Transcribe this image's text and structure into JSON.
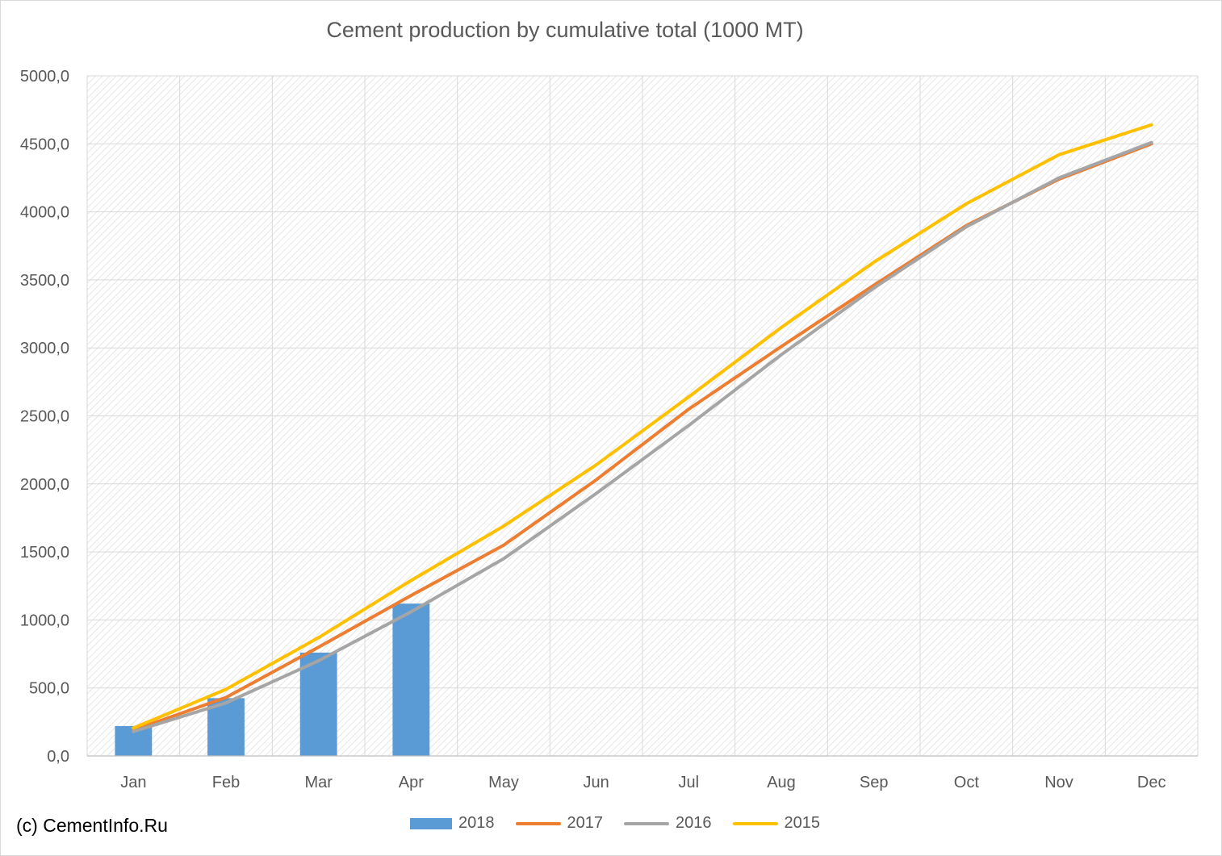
{
  "chart_data": {
    "type": "bar+line",
    "title": "Cement production by cumulative total (1000 MT)",
    "xlabel": "",
    "ylabel": "",
    "categories": [
      "Jan",
      "Feb",
      "Mar",
      "Apr",
      "May",
      "Jun",
      "Jul",
      "Aug",
      "Sep",
      "Oct",
      "Nov",
      "Dec"
    ],
    "ylim": [
      0,
      5000
    ],
    "yticks": [
      "0,0",
      "500,0",
      "1000,0",
      "1500,0",
      "2000,0",
      "2500,0",
      "3000,0",
      "3500,0",
      "4000,0",
      "4500,0",
      "5000,0"
    ],
    "yticks_values": [
      0,
      500,
      1000,
      1500,
      2000,
      2500,
      3000,
      3500,
      4000,
      4500,
      5000
    ],
    "grid": true,
    "legend_position": "bottom",
    "series": [
      {
        "name": "2018",
        "kind": "bar",
        "color": "#5b9bd5",
        "values": [
          220,
          425,
          760,
          1120,
          null,
          null,
          null,
          null,
          null,
          null,
          null,
          null
        ]
      },
      {
        "name": "2017",
        "kind": "line",
        "color": "#ed7d31",
        "values": [
          190,
          430,
          800,
          1180,
          1550,
          2030,
          2550,
          3010,
          3460,
          3900,
          4240,
          4500
        ]
      },
      {
        "name": "2016",
        "kind": "line",
        "color": "#a5a5a5",
        "values": [
          180,
          390,
          700,
          1060,
          1450,
          1930,
          2430,
          2950,
          3440,
          3890,
          4250,
          4510
        ]
      },
      {
        "name": "2015",
        "kind": "line",
        "color": "#ffc000",
        "values": [
          205,
          490,
          870,
          1290,
          1690,
          2140,
          2640,
          3150,
          3630,
          4060,
          4420,
          4640
        ]
      }
    ]
  },
  "credit": "(c) CementInfo.Ru"
}
